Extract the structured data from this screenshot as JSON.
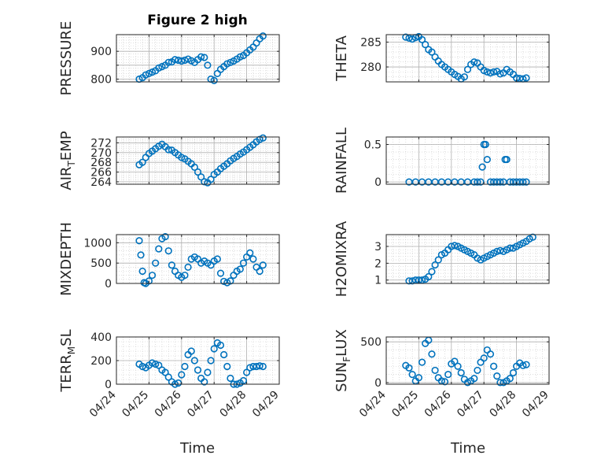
{
  "title": "Figure 2 high",
  "colors": {
    "marker": "#0072BD",
    "axis": "#262626",
    "grid": "#c8c8c8"
  },
  "x_ticks": [
    "04/24",
    "04/25",
    "04/26",
    "04/27",
    "04/28",
    "04/29"
  ],
  "x_label": "Time",
  "chart_data": [
    {
      "type": "scatter",
      "ylabel": "PRESSURE",
      "ylim": [
        790,
        960
      ],
      "yticks": [
        800,
        850,
        900
      ],
      "yticklabels": [
        "800",
        "",
        "900"
      ],
      "x": [
        0.7,
        0.8,
        0.9,
        1.0,
        1.1,
        1.2,
        1.3,
        1.4,
        1.5,
        1.6,
        1.7,
        1.8,
        1.9,
        2.0,
        2.1,
        2.2,
        2.3,
        2.4,
        2.5,
        2.6,
        2.7,
        2.8,
        2.9,
        3.0,
        3.1,
        3.2,
        3.3,
        3.4,
        3.5,
        3.6,
        3.7,
        3.8,
        3.9,
        4.0,
        4.1,
        4.2,
        4.3,
        4.4,
        4.5
      ],
      "y": [
        800,
        805,
        815,
        820,
        825,
        830,
        840,
        845,
        850,
        860,
        862,
        870,
        868,
        865,
        868,
        872,
        866,
        860,
        870,
        880,
        878,
        850,
        800,
        795,
        820,
        835,
        845,
        855,
        860,
        865,
        872,
        880,
        885,
        895,
        905,
        915,
        930,
        945,
        955
      ]
    },
    {
      "type": "scatter",
      "ylabel": "THETA",
      "ylim": [
        277,
        286.5
      ],
      "yticks": [
        280,
        285
      ],
      "yticklabels": [
        "280",
        "285"
      ],
      "x": [
        0.6,
        0.7,
        0.8,
        0.9,
        1.0,
        1.1,
        1.2,
        1.3,
        1.4,
        1.5,
        1.6,
        1.7,
        1.8,
        1.9,
        2.0,
        2.1,
        2.2,
        2.3,
        2.4,
        2.5,
        2.6,
        2.7,
        2.8,
        2.9,
        3.0,
        3.1,
        3.2,
        3.3,
        3.4,
        3.5,
        3.6,
        3.7,
        3.8,
        3.9,
        4.0,
        4.1,
        4.2,
        4.3
      ],
      "y": [
        286,
        285.8,
        285.6,
        285.9,
        286.1,
        285.5,
        284.5,
        283.5,
        283,
        282,
        281.2,
        280.5,
        280,
        279.5,
        279,
        278.5,
        278.1,
        277.6,
        278,
        279.5,
        280.5,
        281,
        280.8,
        280,
        279.3,
        279,
        278.8,
        279,
        279.1,
        278.6,
        278.8,
        279.5,
        279,
        278.5,
        277.8,
        277.7,
        277.6,
        277.8
      ]
    },
    {
      "type": "scatter",
      "ylabel": "AIR_TEMP",
      "ylim": [
        263.5,
        273.2
      ],
      "yticks": [
        264,
        266,
        268,
        270,
        272
      ],
      "yticklabels": [
        "264",
        "266",
        "268",
        "270",
        "272"
      ],
      "x": [
        0.7,
        0.8,
        0.9,
        1.0,
        1.1,
        1.2,
        1.3,
        1.4,
        1.5,
        1.6,
        1.7,
        1.8,
        1.9,
        2.0,
        2.1,
        2.2,
        2.3,
        2.4,
        2.5,
        2.6,
        2.7,
        2.8,
        2.9,
        3.0,
        3.1,
        3.2,
        3.3,
        3.4,
        3.5,
        3.6,
        3.7,
        3.8,
        3.9,
        4.0,
        4.1,
        4.2,
        4.3,
        4.4,
        4.5
      ],
      "y": [
        267.5,
        268,
        269,
        269.8,
        270.3,
        270.8,
        271.3,
        271.7,
        271.2,
        270.6,
        270.5,
        270,
        269.5,
        269,
        268.7,
        268.2,
        267.7,
        267,
        266,
        265,
        264,
        263.8,
        264.5,
        265.5,
        266,
        266.7,
        267.2,
        267.7,
        268.3,
        268.8,
        269.2,
        269.7,
        270.1,
        270.6,
        271.1,
        271.6,
        272.2,
        272.7,
        273
      ]
    },
    {
      "type": "scatter",
      "ylabel": "RAINFALL",
      "ylim": [
        -0.03,
        0.6
      ],
      "yticks": [
        0,
        0.5
      ],
      "yticklabels": [
        "0",
        "0.5"
      ],
      "x": [
        0.7,
        0.9,
        1.1,
        1.3,
        1.5,
        1.7,
        1.9,
        2.1,
        2.3,
        2.5,
        2.7,
        2.8,
        2.9,
        2.95,
        3.0,
        3.05,
        3.1,
        3.2,
        3.3,
        3.4,
        3.5,
        3.6,
        3.65,
        3.7,
        3.8,
        3.9,
        4.0,
        4.1,
        4.2,
        4.3
      ],
      "y": [
        0,
        0,
        0,
        0,
        0,
        0,
        0,
        0,
        0,
        0,
        0,
        0,
        0,
        0.2,
        0.5,
        0.5,
        0.3,
        0,
        0,
        0,
        0,
        0,
        0.3,
        0.3,
        0,
        0,
        0,
        0,
        0,
        0
      ]
    },
    {
      "type": "scatter",
      "ylabel": "MIXDEPTH",
      "ylim": [
        0,
        1200
      ],
      "yticks": [
        0,
        500,
        1000
      ],
      "yticklabels": [
        "0",
        "500",
        "1000"
      ],
      "x": [
        0.7,
        0.75,
        0.8,
        0.85,
        0.9,
        1.0,
        1.1,
        1.2,
        1.3,
        1.4,
        1.5,
        1.6,
        1.7,
        1.8,
        1.9,
        2.0,
        2.1,
        2.2,
        2.3,
        2.4,
        2.5,
        2.6,
        2.7,
        2.8,
        2.9,
        3.0,
        3.1,
        3.2,
        3.3,
        3.4,
        3.5,
        3.6,
        3.7,
        3.8,
        3.9,
        4.0,
        4.1,
        4.2,
        4.3,
        4.4,
        4.5
      ],
      "y": [
        1050,
        700,
        300,
        20,
        0,
        60,
        200,
        500,
        850,
        1100,
        1150,
        800,
        450,
        300,
        200,
        150,
        200,
        400,
        600,
        650,
        600,
        500,
        550,
        500,
        450,
        550,
        600,
        250,
        50,
        20,
        60,
        200,
        300,
        350,
        500,
        650,
        750,
        600,
        400,
        300,
        450
      ]
    },
    {
      "type": "scatter",
      "ylabel": "H2OMIXRA",
      "ylim": [
        0.8,
        3.7
      ],
      "yticks": [
        1,
        2,
        3
      ],
      "yticklabels": [
        "1",
        "2",
        "3"
      ],
      "x": [
        0.7,
        0.8,
        0.9,
        1.0,
        1.1,
        1.2,
        1.3,
        1.4,
        1.5,
        1.6,
        1.7,
        1.8,
        1.9,
        2.0,
        2.1,
        2.2,
        2.3,
        2.4,
        2.5,
        2.6,
        2.7,
        2.8,
        2.9,
        3.0,
        3.1,
        3.2,
        3.3,
        3.4,
        3.5,
        3.6,
        3.7,
        3.8,
        3.9,
        4.0,
        4.1,
        4.2,
        4.3,
        4.4,
        4.5
      ],
      "y": [
        0.95,
        0.95,
        1.0,
        1.0,
        1.0,
        1.05,
        1.2,
        1.5,
        1.9,
        2.2,
        2.5,
        2.6,
        2.8,
        3.0,
        3.05,
        3.0,
        2.9,
        2.8,
        2.7,
        2.6,
        2.5,
        2.3,
        2.2,
        2.3,
        2.4,
        2.5,
        2.6,
        2.7,
        2.75,
        2.7,
        2.8,
        2.9,
        2.9,
        3.0,
        3.1,
        3.2,
        3.3,
        3.45,
        3.55
      ]
    },
    {
      "type": "scatter",
      "ylabel": "TERR_MSL",
      "ylim": [
        0,
        400
      ],
      "yticks": [
        0,
        200,
        400
      ],
      "yticklabels": [
        "0",
        "200",
        "400"
      ],
      "x": [
        0.7,
        0.8,
        0.9,
        1.0,
        1.1,
        1.2,
        1.3,
        1.4,
        1.5,
        1.6,
        1.7,
        1.8,
        1.9,
        2.0,
        2.1,
        2.2,
        2.3,
        2.4,
        2.5,
        2.6,
        2.7,
        2.8,
        2.9,
        3.0,
        3.1,
        3.2,
        3.3,
        3.4,
        3.5,
        3.6,
        3.7,
        3.8,
        3.9,
        4.0,
        4.1,
        4.2,
        4.3,
        4.4,
        4.5
      ],
      "y": [
        170,
        150,
        140,
        160,
        180,
        170,
        160,
        120,
        100,
        60,
        20,
        0,
        10,
        80,
        150,
        250,
        280,
        200,
        120,
        50,
        20,
        100,
        200,
        300,
        350,
        330,
        250,
        150,
        50,
        0,
        0,
        10,
        30,
        100,
        140,
        150,
        150,
        155,
        150
      ]
    },
    {
      "type": "scatter",
      "ylabel": "SUN_FLUX",
      "ylim": [
        -20,
        560
      ],
      "yticks": [
        0,
        500
      ],
      "yticklabels": [
        "0",
        "500"
      ],
      "x": [
        0.6,
        0.7,
        0.8,
        0.9,
        1.0,
        1.1,
        1.2,
        1.3,
        1.4,
        1.5,
        1.6,
        1.7,
        1.8,
        1.9,
        2.0,
        2.1,
        2.2,
        2.3,
        2.4,
        2.5,
        2.6,
        2.7,
        2.8,
        2.9,
        3.0,
        3.1,
        3.2,
        3.3,
        3.4,
        3.5,
        3.6,
        3.7,
        3.8,
        3.9,
        4.0,
        4.1,
        4.2,
        4.3
      ],
      "y": [
        210,
        180,
        100,
        20,
        60,
        250,
        480,
        520,
        350,
        150,
        60,
        20,
        10,
        100,
        230,
        260,
        200,
        120,
        40,
        0,
        20,
        50,
        150,
        250,
        300,
        400,
        350,
        200,
        80,
        0,
        0,
        20,
        50,
        120,
        200,
        240,
        210,
        220
      ]
    }
  ]
}
